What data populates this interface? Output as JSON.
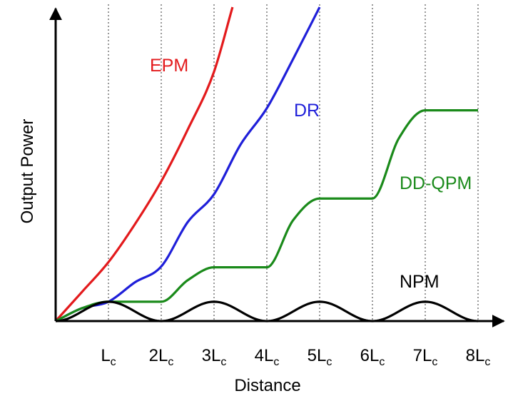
{
  "chart_data": {
    "type": "line",
    "xlabel": "Distance",
    "ylabel": "Output Power",
    "xlim": [
      0,
      8
    ],
    "ylim": [
      0,
      7.3
    ],
    "grid": "vertical dotted",
    "x_ticks": [
      {
        "main": "L",
        "sub": "c"
      },
      {
        "main": "2L",
        "sub": "c"
      },
      {
        "main": "3L",
        "sub": "c"
      },
      {
        "main": "4L",
        "sub": "c"
      },
      {
        "main": "5L",
        "sub": "c"
      },
      {
        "main": "6L",
        "sub": "c"
      },
      {
        "main": "7L",
        "sub": "c"
      },
      {
        "main": "8L",
        "sub": "c"
      }
    ],
    "series": [
      {
        "name": "EPM",
        "color": "#e31a1c",
        "x": [
          0,
          0.5,
          1,
          1.5,
          2,
          2.5,
          3,
          3.35
        ],
        "y": [
          0,
          0.68,
          1.37,
          2.25,
          3.25,
          4.45,
          5.8,
          7.3
        ]
      },
      {
        "name": "DR",
        "color": "#1f1fd9",
        "x": [
          0,
          0.5,
          1,
          1.5,
          2,
          2.5,
          3,
          3.5,
          4,
          4.5,
          5
        ],
        "y": [
          0,
          0.3,
          0.45,
          0.9,
          1.27,
          2.3,
          2.95,
          4.1,
          4.95,
          6.1,
          7.3
        ]
      },
      {
        "name": "DD-QPM",
        "color": "#1a8a1a",
        "x": [
          0,
          0.5,
          1,
          1.5,
          2,
          2.5,
          3,
          3.5,
          4,
          4.5,
          5,
          5.5,
          6,
          6.5,
          7,
          7.5,
          8
        ],
        "y": [
          0,
          0.3,
          0.45,
          0.45,
          0.45,
          0.95,
          1.25,
          1.25,
          1.25,
          2.35,
          2.85,
          2.85,
          2.85,
          4.25,
          4.9,
          4.9,
          4.9
        ]
      },
      {
        "name": "NPM",
        "color": "#000000",
        "x": [
          0,
          1,
          2,
          3,
          4,
          5,
          6,
          7,
          8
        ],
        "y": [
          0,
          0.45,
          0,
          0.45,
          0,
          0.45,
          0,
          0.45,
          0
        ]
      }
    ]
  }
}
